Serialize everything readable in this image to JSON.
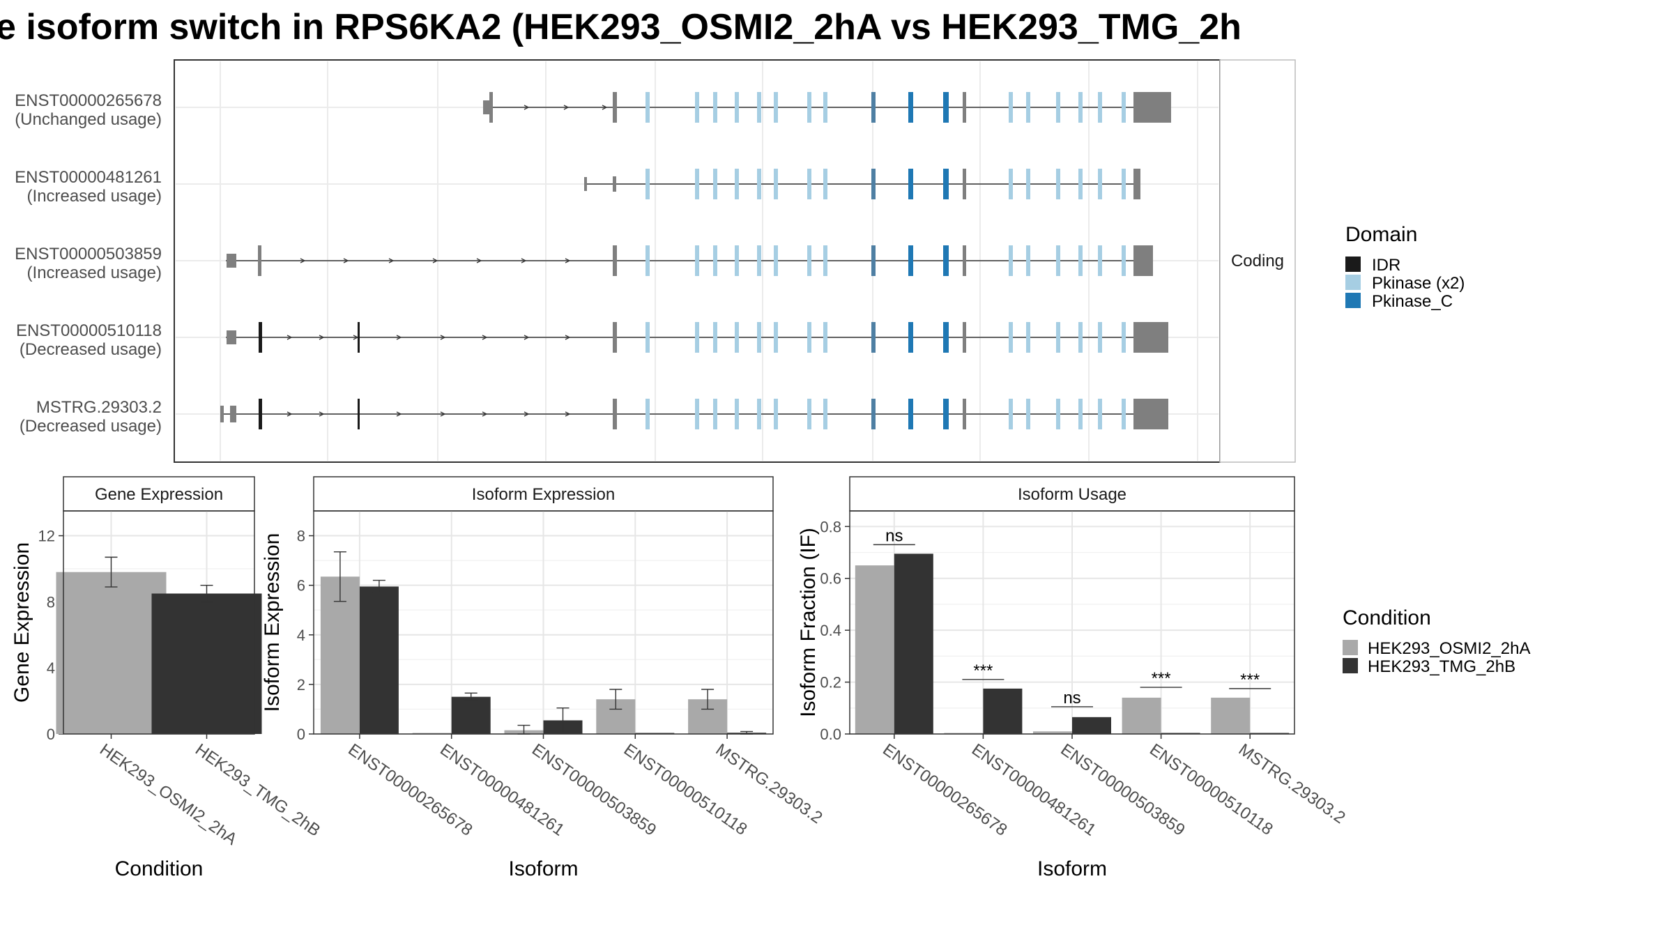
{
  "title": "e isoform switch in RPS6KA2 (HEK293_OSMI2_2hA vs HEK293_TMG_2h",
  "structure": {
    "strip_label": "Coding",
    "isoforms": [
      {
        "id": "ENST00000265678",
        "usage": "(Unchanged usage)"
      },
      {
        "id": "ENST00000481261",
        "usage": "(Increased usage)"
      },
      {
        "id": "ENST00000503859",
        "usage": "(Increased usage)"
      },
      {
        "id": "ENST00000510118",
        "usage": "(Decreased usage)"
      },
      {
        "id": "MSTRG.29303.2",
        "usage": "(Decreased usage)"
      }
    ]
  },
  "legend_domain": {
    "title": "Domain",
    "items": [
      {
        "label": "IDR",
        "color": "#1a1a1a"
      },
      {
        "label": "Pkinase (x2)",
        "color": "#a6cee3"
      },
      {
        "label": "Pkinase_C",
        "color": "#1f78b4"
      }
    ]
  },
  "legend_condition": {
    "title": "Condition",
    "items": [
      {
        "label": "HEK293_OSMI2_2hA",
        "color": "#a9a9a9"
      },
      {
        "label": "HEK293_TMG_2hB",
        "color": "#333333"
      }
    ]
  },
  "colors": {
    "exon": "#7f7f7f",
    "intron": "#333333"
  },
  "chart_data": [
    {
      "type": "bar",
      "title": "Gene Expression",
      "xlabel": "Condition",
      "ylabel": "Gene Expression",
      "ylim": [
        0,
        13.5
      ],
      "yticks": [
        0,
        4,
        8,
        12
      ],
      "categories": [
        "HEK293_OSMI2_2hA",
        "HEK293_TMG_2hB"
      ],
      "values": [
        9.8,
        8.5
      ],
      "errors": [
        [
          8.9,
          10.7
        ],
        [
          8.0,
          9.0
        ]
      ]
    },
    {
      "type": "bar",
      "title": "Isoform Expression",
      "xlabel": "Isoform",
      "ylabel": "Isoform Expression",
      "ylim": [
        0,
        9
      ],
      "yticks": [
        0,
        2,
        4,
        6,
        8
      ],
      "categories": [
        "ENST00000265678",
        "ENST00000481261",
        "ENST00000503859",
        "ENST00000510118",
        "MSTRG.29303.2"
      ],
      "series": [
        {
          "name": "HEK293_OSMI2_2hA",
          "values": [
            6.35,
            0.0,
            0.15,
            1.4,
            1.4
          ],
          "errors": [
            [
              5.35,
              7.35
            ],
            [
              0,
              0
            ],
            [
              0.0,
              0.35
            ],
            [
              1.0,
              1.8
            ],
            [
              1.0,
              1.8
            ]
          ]
        },
        {
          "name": "HEK293_TMG_2hB",
          "values": [
            5.95,
            1.5,
            0.55,
            0.0,
            0.05
          ],
          "errors": [
            [
              5.7,
              6.2
            ],
            [
              1.35,
              1.65
            ],
            [
              0.05,
              1.05
            ],
            [
              0,
              0
            ],
            [
              0.0,
              0.1
            ]
          ]
        }
      ]
    },
    {
      "type": "bar",
      "title": "Isoform Usage",
      "xlabel": "Isoform",
      "ylabel": "Isoform Fraction (IF)",
      "ylim": [
        0,
        0.86
      ],
      "yticks": [
        0.0,
        0.2,
        0.4,
        0.6,
        0.8
      ],
      "categories": [
        "ENST00000265678",
        "ENST00000481261",
        "ENST00000503859",
        "ENST00000510118",
        "MSTRG.29303.2"
      ],
      "series": [
        {
          "name": "HEK293_OSMI2_2hA",
          "values": [
            0.65,
            0.0,
            0.01,
            0.14,
            0.14
          ]
        },
        {
          "name": "HEK293_TMG_2hB",
          "values": [
            0.695,
            0.175,
            0.065,
            0.0,
            0.003
          ]
        }
      ],
      "significance": [
        {
          "label": "ns",
          "y": 0.73
        },
        {
          "label": "***",
          "y": 0.21
        },
        {
          "label": "ns",
          "y": 0.105
        },
        {
          "label": "***",
          "y": 0.18
        },
        {
          "label": "***",
          "y": 0.175
        }
      ]
    }
  ]
}
